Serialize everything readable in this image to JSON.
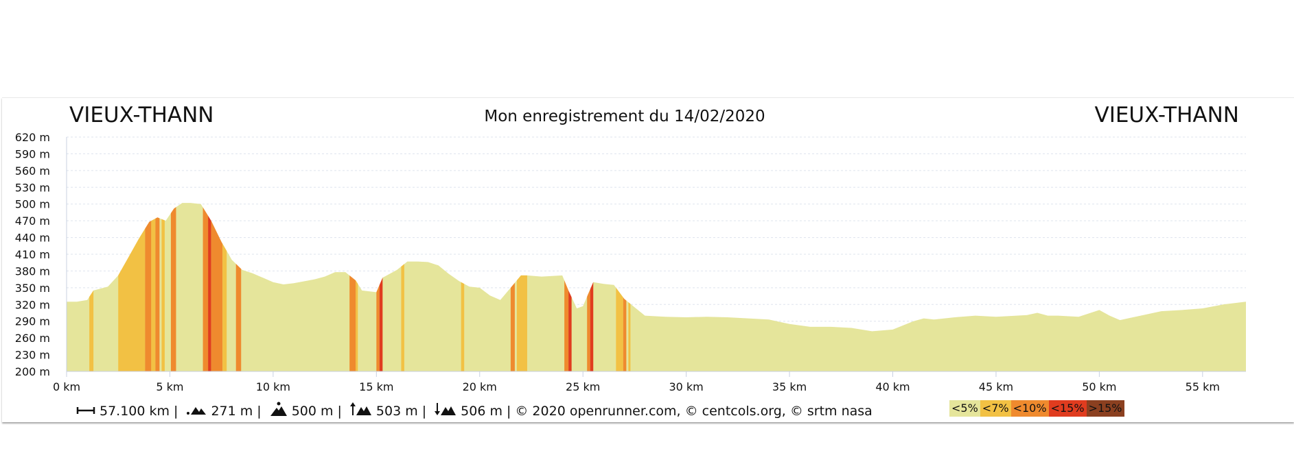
{
  "header": {
    "start_place": "VIEUX-THANN",
    "end_place": "VIEUX-THANN",
    "title": "Mon enregistrement du 14/02/2020"
  },
  "stats": {
    "distance": "57.100 km",
    "min_altitude": "271 m",
    "max_altitude": "500 m",
    "elevation_gain": "503 m",
    "elevation_loss": "506 m",
    "credits": "© 2020 openrunner.com, © centcols.org, © srtm nasa",
    "separator": "|",
    "icons": [
      "distance-icon",
      "min-altitude-icon",
      "max-altitude-icon",
      "elevation-gain-icon",
      "elevation-loss-icon"
    ]
  },
  "legend": [
    {
      "label": "<5%",
      "color": "#e5e59b"
    },
    {
      "label": "<7%",
      "color": "#f2c144"
    },
    {
      "label": "<10%",
      "color": "#ef8a2e"
    },
    {
      "label": "<15%",
      "color": "#e03c1f"
    },
    {
      "label": ">15%",
      "color": "#8b4020"
    }
  ],
  "chart_data": {
    "type": "area",
    "xlabel": "",
    "ylabel": "",
    "xlim": [
      0,
      57.1
    ],
    "ylim": [
      200,
      620
    ],
    "x_ticks": [
      "0 km",
      "5 km",
      "10 km",
      "15 km",
      "20 km",
      "25 km",
      "30 km",
      "35 km",
      "40 km",
      "45 km",
      "50 km",
      "55 km"
    ],
    "x_tick_values": [
      0,
      5,
      10,
      15,
      20,
      25,
      30,
      35,
      40,
      45,
      50,
      55
    ],
    "y_ticks": [
      "200 m",
      "230 m",
      "260 m",
      "290 m",
      "320 m",
      "350 m",
      "380 m",
      "410 m",
      "440 m",
      "470 m",
      "500 m",
      "530 m",
      "560 m",
      "590 m",
      "620 m"
    ],
    "y_tick_values": [
      200,
      230,
      260,
      290,
      320,
      350,
      380,
      410,
      440,
      470,
      500,
      530,
      560,
      590,
      620
    ],
    "grid": true,
    "series": [
      {
        "x": [
          0,
          0.5,
          1,
          1.3,
          2,
          2.5,
          3,
          3.5,
          4,
          4.4,
          4.8,
          5.2,
          5.6,
          6,
          6.5,
          7,
          7.5,
          8,
          8.5,
          9,
          10,
          10.5,
          11,
          12,
          12.5,
          13,
          13.5,
          14,
          14.3,
          15,
          15.3,
          16,
          16.5,
          17,
          17.5,
          18,
          18.5,
          19,
          19.5,
          20,
          20.5,
          21,
          21.5,
          22,
          22.3,
          23,
          24,
          24.3,
          24.7,
          25,
          25.5,
          26,
          26.5,
          27,
          27.5,
          28,
          29,
          30,
          31,
          32,
          33,
          34,
          35,
          36,
          37,
          38,
          39,
          40,
          41,
          41.5,
          42,
          43,
          44,
          45,
          46,
          46.5,
          47,
          47.5,
          48,
          49,
          50,
          50.5,
          51,
          52,
          53,
          54,
          55,
          56,
          57.1
        ],
        "y": [
          325,
          325,
          328,
          345,
          352,
          372,
          405,
          438,
          468,
          476,
          470,
          492,
          502,
          502,
          500,
          470,
          432,
          400,
          382,
          376,
          360,
          356,
          358,
          365,
          370,
          378,
          378,
          363,
          345,
          342,
          368,
          382,
          397,
          397,
          396,
          390,
          375,
          362,
          352,
          350,
          336,
          328,
          350,
          372,
          372,
          370,
          372,
          345,
          313,
          317,
          360,
          357,
          355,
          330,
          315,
          300,
          298,
          297,
          298,
          297,
          295,
          293,
          285,
          280,
          280,
          278,
          272,
          275,
          290,
          295,
          293,
          297,
          300,
          298,
          300,
          301,
          305,
          300,
          300,
          298,
          310,
          300,
          292,
          300,
          308,
          310,
          313,
          320,
          325
        ]
      }
    ],
    "slope_bands": [
      {
        "from": 1.1,
        "to": 1.3,
        "class": "<7%"
      },
      {
        "from": 2.5,
        "to": 3.8,
        "class": "<7%"
      },
      {
        "from": 3.8,
        "to": 4.1,
        "class": "<10%"
      },
      {
        "from": 4.1,
        "to": 4.3,
        "class": "<7%"
      },
      {
        "from": 4.3,
        "to": 4.5,
        "class": "<10%"
      },
      {
        "from": 4.6,
        "to": 4.75,
        "class": "<7%"
      },
      {
        "from": 5.05,
        "to": 5.3,
        "class": "<10%"
      },
      {
        "from": 6.6,
        "to": 6.85,
        "class": "<10%"
      },
      {
        "from": 6.85,
        "to": 7.0,
        "class": "<15%"
      },
      {
        "from": 7.0,
        "to": 7.55,
        "class": "<10%"
      },
      {
        "from": 7.55,
        "to": 7.75,
        "class": "<7%"
      },
      {
        "from": 8.2,
        "to": 8.45,
        "class": "<10%"
      },
      {
        "from": 13.7,
        "to": 14.0,
        "class": "<10%"
      },
      {
        "from": 14.0,
        "to": 14.1,
        "class": "<7%"
      },
      {
        "from": 15.0,
        "to": 15.15,
        "class": "<10%"
      },
      {
        "from": 15.15,
        "to": 15.3,
        "class": "<15%"
      },
      {
        "from": 16.2,
        "to": 16.35,
        "class": "<7%"
      },
      {
        "from": 19.1,
        "to": 19.25,
        "class": "<7%"
      },
      {
        "from": 21.5,
        "to": 21.7,
        "class": "<10%"
      },
      {
        "from": 21.8,
        "to": 22.3,
        "class": "<7%"
      },
      {
        "from": 24.1,
        "to": 24.3,
        "class": "<10%"
      },
      {
        "from": 24.3,
        "to": 24.45,
        "class": "<15%"
      },
      {
        "from": 25.2,
        "to": 25.35,
        "class": "<10%"
      },
      {
        "from": 25.35,
        "to": 25.5,
        "class": "<15%"
      },
      {
        "from": 26.6,
        "to": 26.95,
        "class": "<7%"
      },
      {
        "from": 26.95,
        "to": 27.1,
        "class": "<10%"
      },
      {
        "from": 27.2,
        "to": 27.3,
        "class": "<7%"
      }
    ]
  }
}
